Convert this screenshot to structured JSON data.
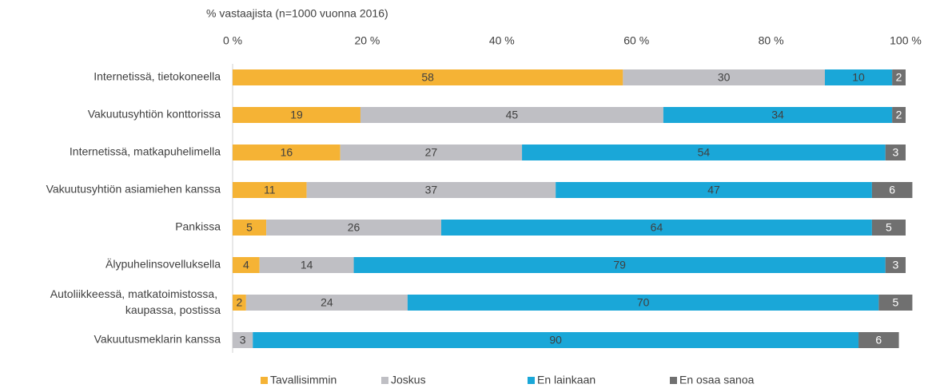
{
  "chart_data": {
    "type": "stacked-bar-horizontal",
    "subtitle": "% vastaajista (n=1000 vuonna 2016)",
    "categories": [
      "Internetissä, tietokoneella",
      "Vakuutusyhtiön konttorissa",
      "Internetissä, matkapuhelimella",
      "Vakuutusyhtiön asiamiehen kanssa",
      "Pankissa",
      "Älypuhelinsovelluksella",
      "Autoliikkeessä, matkatoimistossa, kaupassa, postissa",
      "Vakuutusmeklarin kanssa"
    ],
    "series": [
      {
        "name": "Tavallisimmin",
        "color": "#f5b335",
        "values": [
          58,
          19,
          16,
          11,
          5,
          4,
          2,
          null
        ]
      },
      {
        "name": "Joskus",
        "color": "#bfbfc4",
        "values": [
          30,
          45,
          27,
          37,
          26,
          14,
          24,
          3
        ]
      },
      {
        "name": "En lainkaan",
        "color": "#1aa7d8",
        "values": [
          10,
          34,
          54,
          47,
          64,
          79,
          70,
          90
        ]
      },
      {
        "name": "En osaa sanoa",
        "color": "#707070",
        "values": [
          2,
          2,
          3,
          6,
          5,
          3,
          5,
          6
        ]
      }
    ],
    "xlim": [
      0,
      100
    ],
    "xticks": [
      {
        "value": 0,
        "label": "0 %"
      },
      {
        "value": 20,
        "label": "20 %"
      },
      {
        "value": 40,
        "label": "40 %"
      },
      {
        "value": 60,
        "label": "60 %"
      },
      {
        "value": 80,
        "label": "80 %"
      },
      {
        "value": 100,
        "label": "100 %"
      }
    ],
    "grid": false
  }
}
